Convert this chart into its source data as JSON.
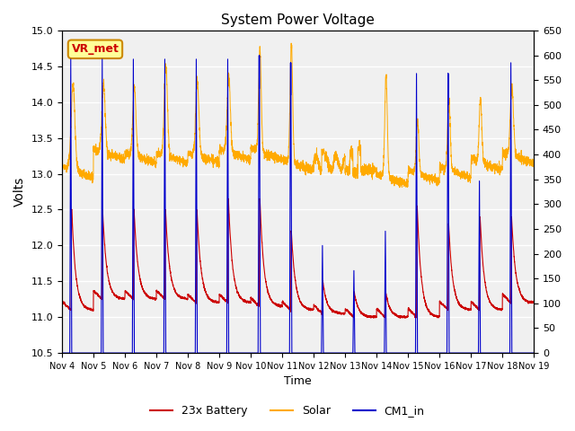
{
  "title": "System Power Voltage",
  "xlabel": "Time",
  "ylabel": "Volts",
  "ylim_left": [
    10.5,
    15.0
  ],
  "ylim_right": [
    0,
    650
  ],
  "background_color": "#ffffff",
  "plot_bg_color": "#f0f0f0",
  "grid_color": "#ffffff",
  "legend_items": [
    "23x Battery",
    "Solar",
    "CM1_in"
  ],
  "legend_colors": [
    "#cc0000",
    "#ffaa00",
    "#0000cc"
  ],
  "vr_met_label": "VR_met",
  "vr_met_bg": "#ffff99",
  "vr_met_border": "#cc8800",
  "vr_met_text_color": "#cc0000",
  "x_tick_labels": [
    "Nov 4",
    "Nov 5",
    "Nov 6",
    "Nov 7",
    "Nov 8",
    "Nov 9",
    "Nov 10",
    "Nov 11",
    "Nov 12",
    "Nov 13",
    "Nov 14",
    "Nov 15",
    "Nov 16",
    "Nov 17",
    "Nov 18",
    "Nov 19"
  ],
  "n_days": 15,
  "pts_per_day": 288,
  "right_ticks": [
    0,
    50,
    100,
    150,
    200,
    250,
    300,
    350,
    400,
    450,
    500,
    550,
    600,
    650
  ],
  "left_ticks": [
    10.5,
    11.0,
    11.5,
    12.0,
    12.5,
    13.0,
    13.5,
    14.0,
    14.5,
    15.0
  ]
}
